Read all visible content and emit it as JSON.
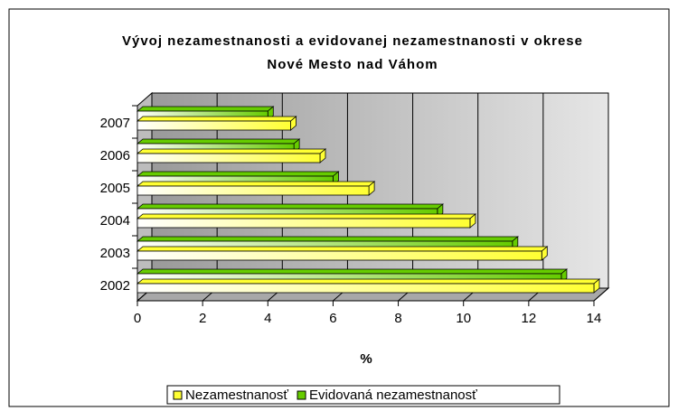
{
  "chart_data": {
    "type": "bar",
    "orientation": "horizontal",
    "title": "Vývoj nezamestnanosti a evidovanej nezamestnanosti v okrese Nové Mesto nad Váhom",
    "categories": [
      "2002",
      "2003",
      "2004",
      "2005",
      "2006",
      "2007"
    ],
    "series": [
      {
        "name": "Nezamestnanosť",
        "color": "#ffff33",
        "values": [
          14.0,
          12.4,
          10.2,
          7.1,
          5.6,
          4.7
        ]
      },
      {
        "name": "Evidovaná nezamestnanosť",
        "color": "#66cc00",
        "values": [
          13.0,
          11.5,
          9.2,
          6.0,
          4.8,
          4.0
        ]
      }
    ],
    "xlabel": "%",
    "xlim": [
      0,
      14
    ],
    "xticks": [
      0,
      2,
      4,
      6,
      8,
      10,
      12,
      14
    ],
    "grid": true,
    "legend": "bottom"
  }
}
